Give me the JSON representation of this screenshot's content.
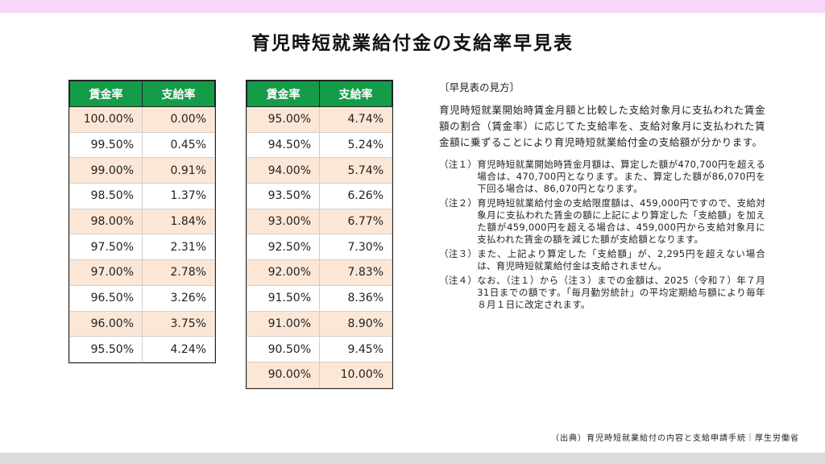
{
  "title": "育児時短就業給付金の支給率早見表",
  "table": {
    "headers": [
      "賃金率",
      "支給率",
      "賃金率",
      "支給率"
    ],
    "left_rows": [
      [
        "100.00%",
        "0.00%"
      ],
      [
        "99.50%",
        "0.45%"
      ],
      [
        "99.00%",
        "0.91%"
      ],
      [
        "98.50%",
        "1.37%"
      ],
      [
        "98.00%",
        "1.84%"
      ],
      [
        "97.50%",
        "2.31%"
      ],
      [
        "97.00%",
        "2.78%"
      ],
      [
        "96.50%",
        "3.26%"
      ],
      [
        "96.00%",
        "3.75%"
      ],
      [
        "95.50%",
        "4.24%"
      ]
    ],
    "right_rows": [
      [
        "95.00%",
        "4.74%"
      ],
      [
        "94.50%",
        "5.24%"
      ],
      [
        "94.00%",
        "5.74%"
      ],
      [
        "93.50%",
        "6.26%"
      ],
      [
        "93.00%",
        "6.77%"
      ],
      [
        "92.50%",
        "7.30%"
      ],
      [
        "92.00%",
        "7.83%"
      ],
      [
        "91.50%",
        "8.36%"
      ],
      [
        "91.00%",
        "8.90%"
      ],
      [
        "90.50%",
        "9.45%"
      ],
      [
        "90.00%",
        "10.00%"
      ]
    ],
    "colors": {
      "header_bg": "#149c49",
      "stripe": "#fce7d6",
      "top_band": "#fbd6fb"
    }
  },
  "howto": {
    "title": "〔早見表の見方〕",
    "intro": "育児時短就業開始時賃金月額と比較した支給対象月に支払われた賃金額の割合（賃金率）に応じてた支給率を、支給対象月に支払われた賃金額に乗ずることにより育児時短就業給付金の支給額が分かります。",
    "notes": [
      {
        "label": "（注１）",
        "text": "育児時短就業開始時賃金月額は、算定した額が470,700円を超える場合は、470,700円となります。また、算定した額が86,070円を下回る場合は、86,070円となります。"
      },
      {
        "label": "（注２）",
        "text": "育児時短就業給付金の支給限度額は、459,000円ですので、支給対象月に支払われた賃金の額に上記により算定した「支給額」を加えた額が459,000円を超える場合は、459,000円から支給対象月に支払われた賃金の額を減じた額が支給額となります。"
      },
      {
        "label": "（注３）",
        "text": "また、上記より算定した「支給額」が、2,295円を超えない場合は、育児時短就業給付金は支給されません。"
      },
      {
        "label": "（注４）",
        "text": "なお、（注１）から（注３）までの金額は、2025（令和７）年７月31日までの額です。「毎月勤労統計」の平均定期給与額により毎年８月１日に改定されます。"
      }
    ]
  },
  "source": "（出典）育児時短就業給付の内容と支給申請手続｜厚生労働省"
}
